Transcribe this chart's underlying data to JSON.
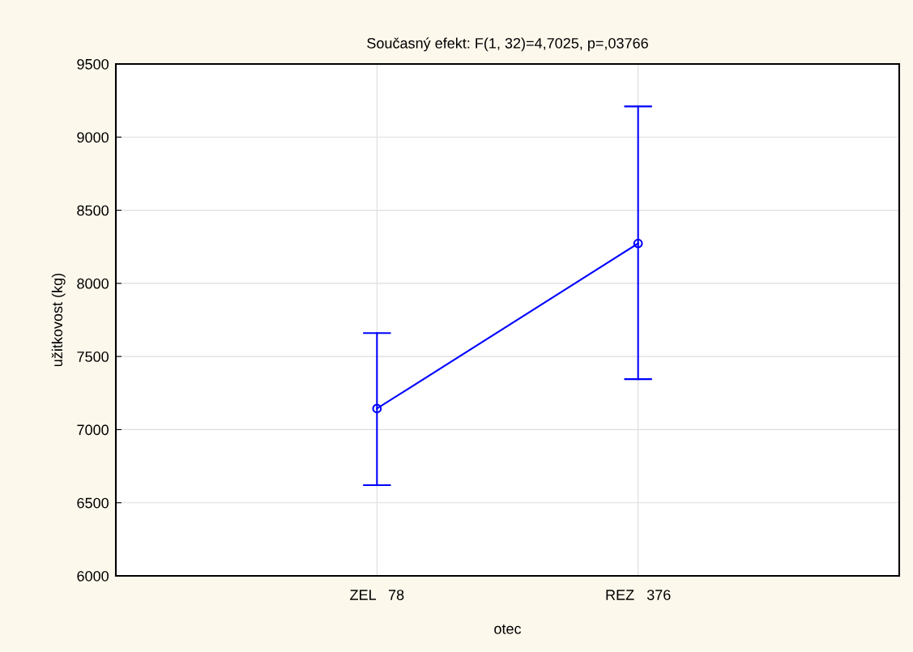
{
  "chart_data": {
    "type": "line",
    "title": "Současný efekt: F(1, 32)=4,7025, p=,03766",
    "xlabel": "otec",
    "ylabel": "užitkovost (kg)",
    "categories": [
      "ZEL   78",
      "REZ   376"
    ],
    "color": "#0000ff",
    "values": [
      7144,
      8273
    ],
    "errors": [
      [
        6620,
        7660
      ],
      [
        7345,
        9210
      ]
    ],
    "ylim": [
      6000,
      9500
    ],
    "yticks": [
      6000,
      6500,
      7000,
      7500,
      8000,
      8500,
      9000,
      9500
    ],
    "grid": true,
    "marker": "circle",
    "line_style": "solid"
  }
}
